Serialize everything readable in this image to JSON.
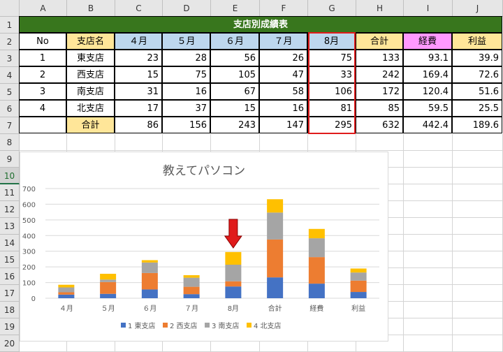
{
  "columns": [
    "A",
    "B",
    "C",
    "D",
    "E",
    "F",
    "G",
    "H",
    "I",
    "J"
  ],
  "rows": [
    "1",
    "2",
    "3",
    "4",
    "5",
    "6",
    "7",
    "8",
    "9",
    "10",
    "11",
    "12",
    "13",
    "14",
    "15",
    "16",
    "17",
    "18",
    "19",
    "20"
  ],
  "selected_row": "10",
  "table": {
    "title": "支店別成績表",
    "headers": [
      "No",
      "支店名",
      "４月",
      "５月",
      "６月",
      "７月",
      "8月",
      "合計",
      "経費",
      "利益"
    ],
    "body": [
      [
        "1",
        "東支店",
        "23",
        "28",
        "56",
        "26",
        "75",
        "133",
        "93.1",
        "39.9"
      ],
      [
        "2",
        "西支店",
        "15",
        "75",
        "105",
        "47",
        "33",
        "242",
        "169.4",
        "72.6"
      ],
      [
        "3",
        "南支店",
        "31",
        "16",
        "67",
        "58",
        "106",
        "172",
        "120.4",
        "51.6"
      ],
      [
        "4",
        "北支店",
        "17",
        "37",
        "15",
        "16",
        "81",
        "85",
        "59.5",
        "25.5"
      ]
    ],
    "total_row": [
      "",
      "合計",
      "86",
      "156",
      "243",
      "147",
      "295",
      "632",
      "442.4",
      "189.6"
    ]
  },
  "colors": {
    "title_band": "#38761d",
    "header_yellow": "#ffe699",
    "header_blue": "#bdd7ee",
    "header_pink": "#ff99ff",
    "highlight_box": "#e01b1b",
    "arrow": "#e01b1b"
  },
  "arrow_icon": "down-arrow-icon",
  "chart_data": {
    "type": "bar",
    "stacked": true,
    "title": "教えてパソコン",
    "categories": [
      "４月",
      "５月",
      "６月",
      "７月",
      "8月",
      "合計",
      "経費",
      "利益"
    ],
    "ylim": [
      0,
      700
    ],
    "yticks": [
      "0",
      "100",
      "200",
      "300",
      "400",
      "500",
      "600",
      "700"
    ],
    "grid": true,
    "legend_position": "bottom",
    "series": [
      {
        "name": "1 東支店",
        "color": "#4472c4",
        "values": [
          23,
          28,
          56,
          26,
          75,
          133,
          93.1,
          39.9
        ]
      },
      {
        "name": "2 西支店",
        "color": "#ed7d31",
        "values": [
          15,
          75,
          105,
          47,
          33,
          242,
          169.4,
          72.6
        ]
      },
      {
        "name": "3 南支店",
        "color": "#a5a5a5",
        "values": [
          31,
          16,
          67,
          58,
          106,
          172,
          120.4,
          51.6
        ]
      },
      {
        "name": "4 北支店",
        "color": "#ffc000",
        "values": [
          17,
          37,
          15,
          16,
          81,
          85,
          59.5,
          25.5
        ]
      }
    ]
  }
}
